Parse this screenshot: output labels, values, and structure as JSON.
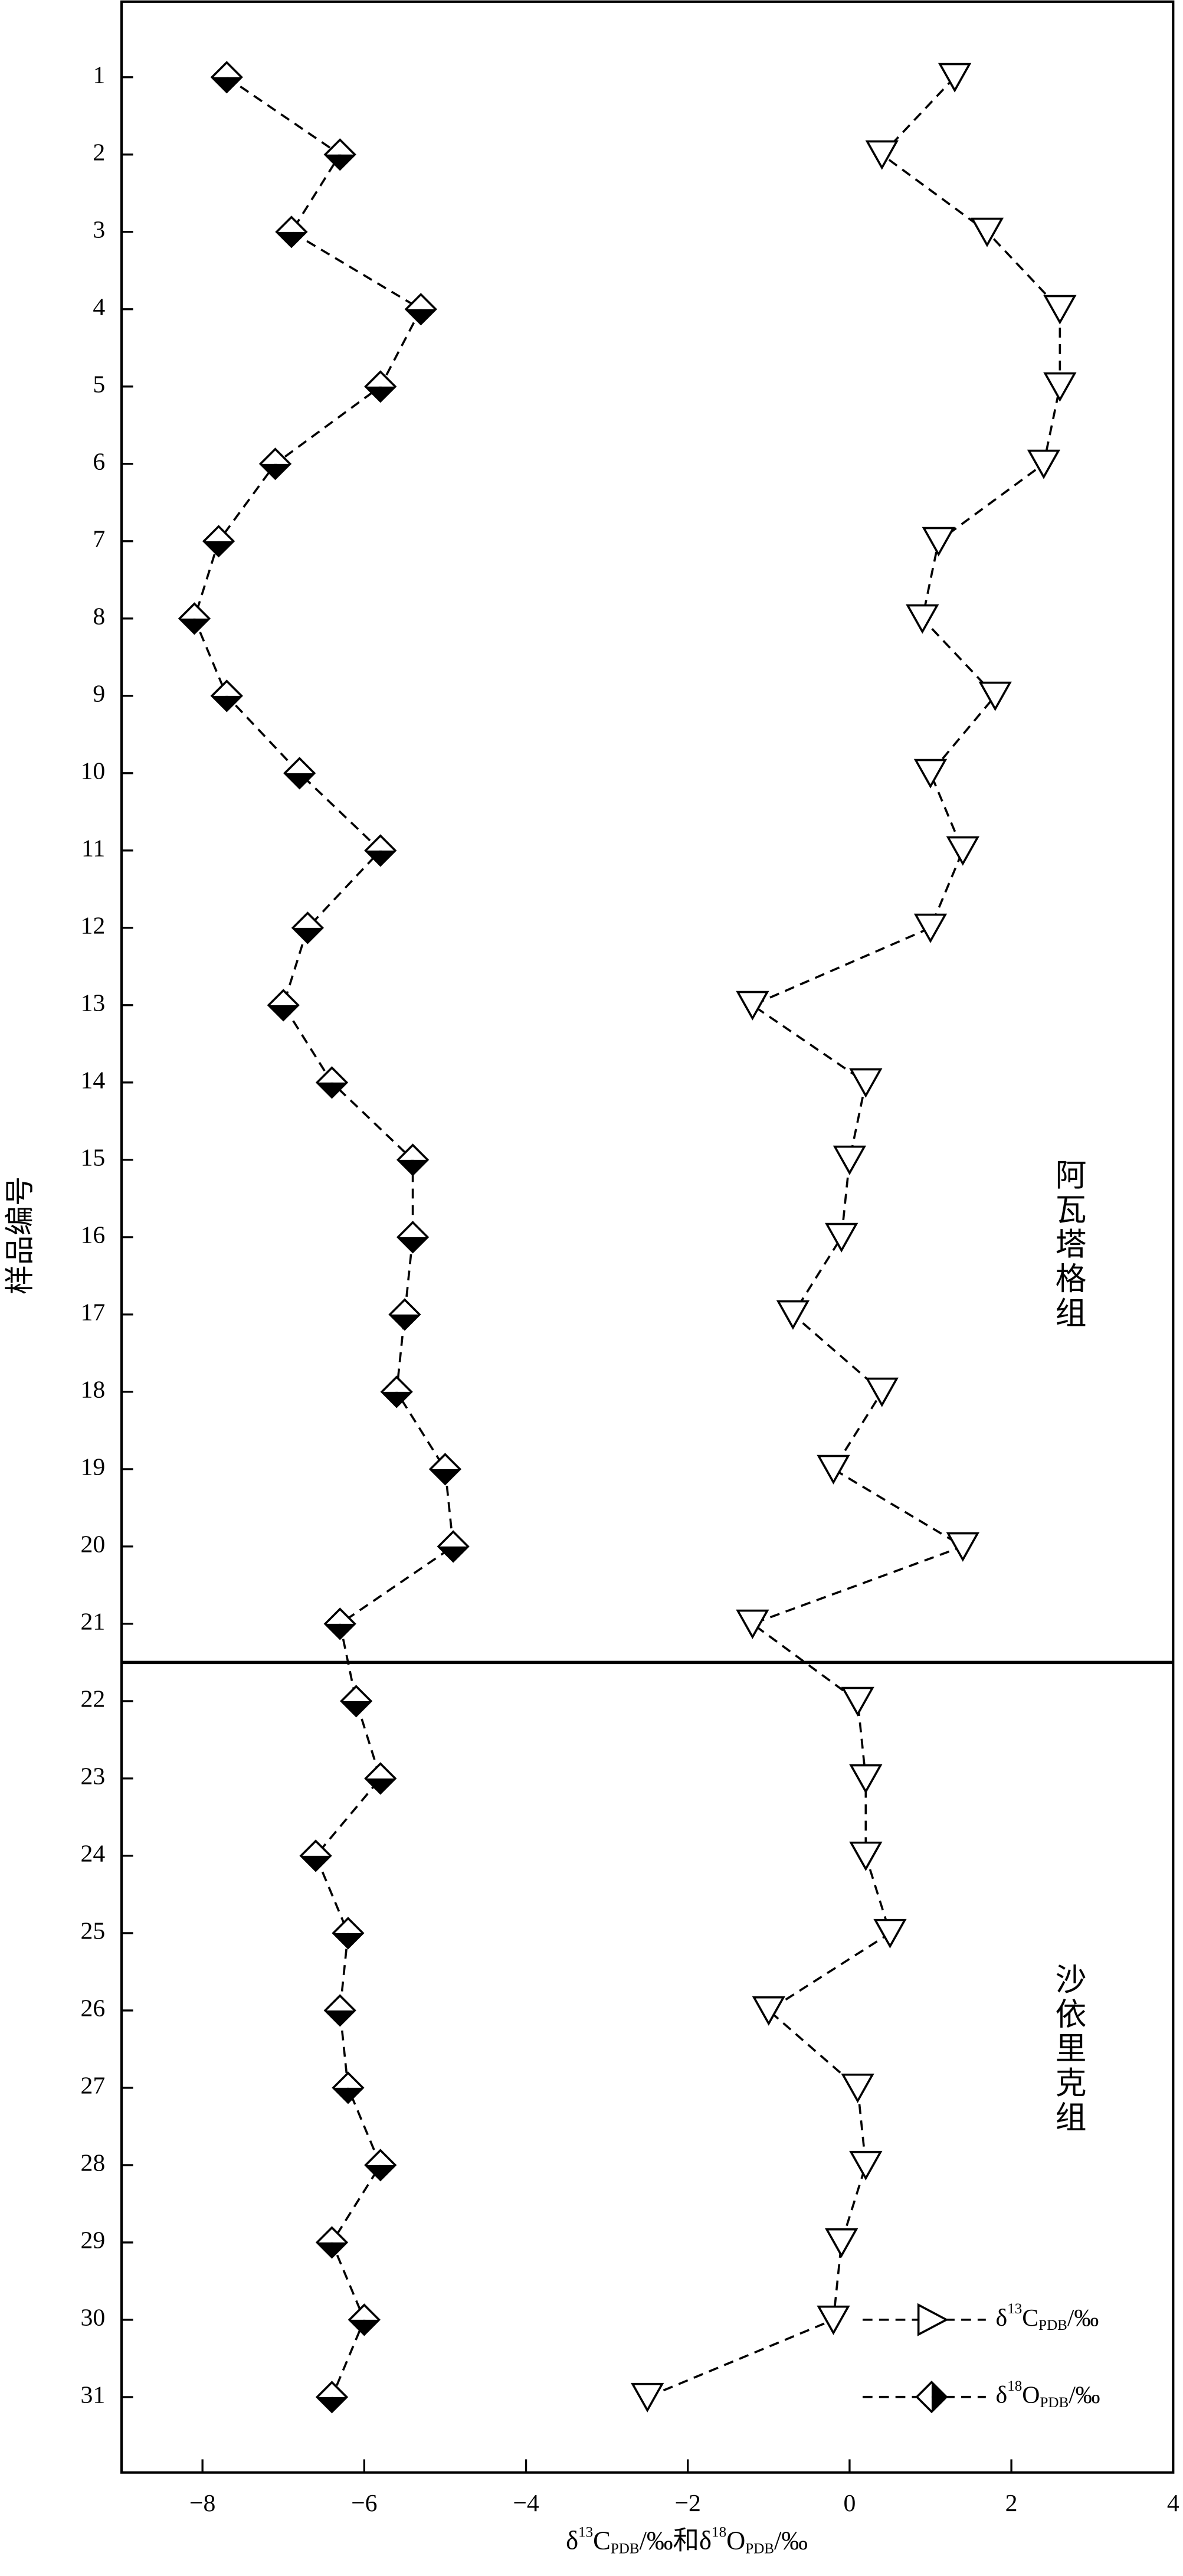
{
  "chart_data": {
    "type": "line",
    "x_label": "δ13CPDB/‰和δ18OPDB/‰",
    "y_label": "样品编号",
    "categories": [
      1,
      2,
      3,
      4,
      5,
      6,
      7,
      8,
      9,
      10,
      11,
      12,
      13,
      14,
      15,
      16,
      17,
      18,
      19,
      20,
      21,
      22,
      23,
      24,
      25,
      26,
      27,
      28,
      29,
      30,
      31
    ],
    "series": [
      {
        "name": "δ13CPDB/‰",
        "color": "#000000",
        "marker": "triangle",
        "line_style": "dashed",
        "values": [
          1.3,
          0.4,
          1.7,
          2.6,
          2.6,
          2.4,
          1.1,
          0.9,
          1.8,
          1.0,
          1.4,
          1.0,
          -1.2,
          0.2,
          0.0,
          -0.1,
          -0.7,
          0.4,
          -0.2,
          1.4,
          -1.2,
          0.1,
          0.2,
          0.2,
          0.5,
          -1.0,
          0.1,
          0.2,
          -0.1,
          -0.2,
          -2.5
        ]
      },
      {
        "name": "δ18OPDB/‰",
        "color": "#000000",
        "marker": "diamond-half",
        "line_style": "dashed",
        "values": [
          -7.7,
          -6.3,
          -6.9,
          -5.3,
          -5.8,
          -7.1,
          -7.8,
          -8.1,
          -7.7,
          -6.8,
          -5.8,
          -6.7,
          -7.0,
          -6.4,
          -5.4,
          -5.4,
          -5.5,
          -5.6,
          -5.0,
          -4.9,
          -6.3,
          -6.1,
          -5.8,
          -6.6,
          -6.2,
          -6.3,
          -6.2,
          -5.8,
          -6.4,
          -6.0,
          -6.4
        ]
      }
    ],
    "xlim": [
      -9,
      4
    ],
    "xticks": [
      {
        "value": -8,
        "label": "−8"
      },
      {
        "value": -6,
        "label": "−6"
      },
      {
        "value": -4,
        "label": "−4"
      },
      {
        "value": -2,
        "label": "−2"
      },
      0,
      2,
      4
    ],
    "formations": [
      {
        "label": "阿瓦塔格组",
        "from": 1,
        "to": 21
      },
      {
        "label": "沙依里克组",
        "from": 22,
        "to": 31
      }
    ],
    "legend": "lower right"
  }
}
